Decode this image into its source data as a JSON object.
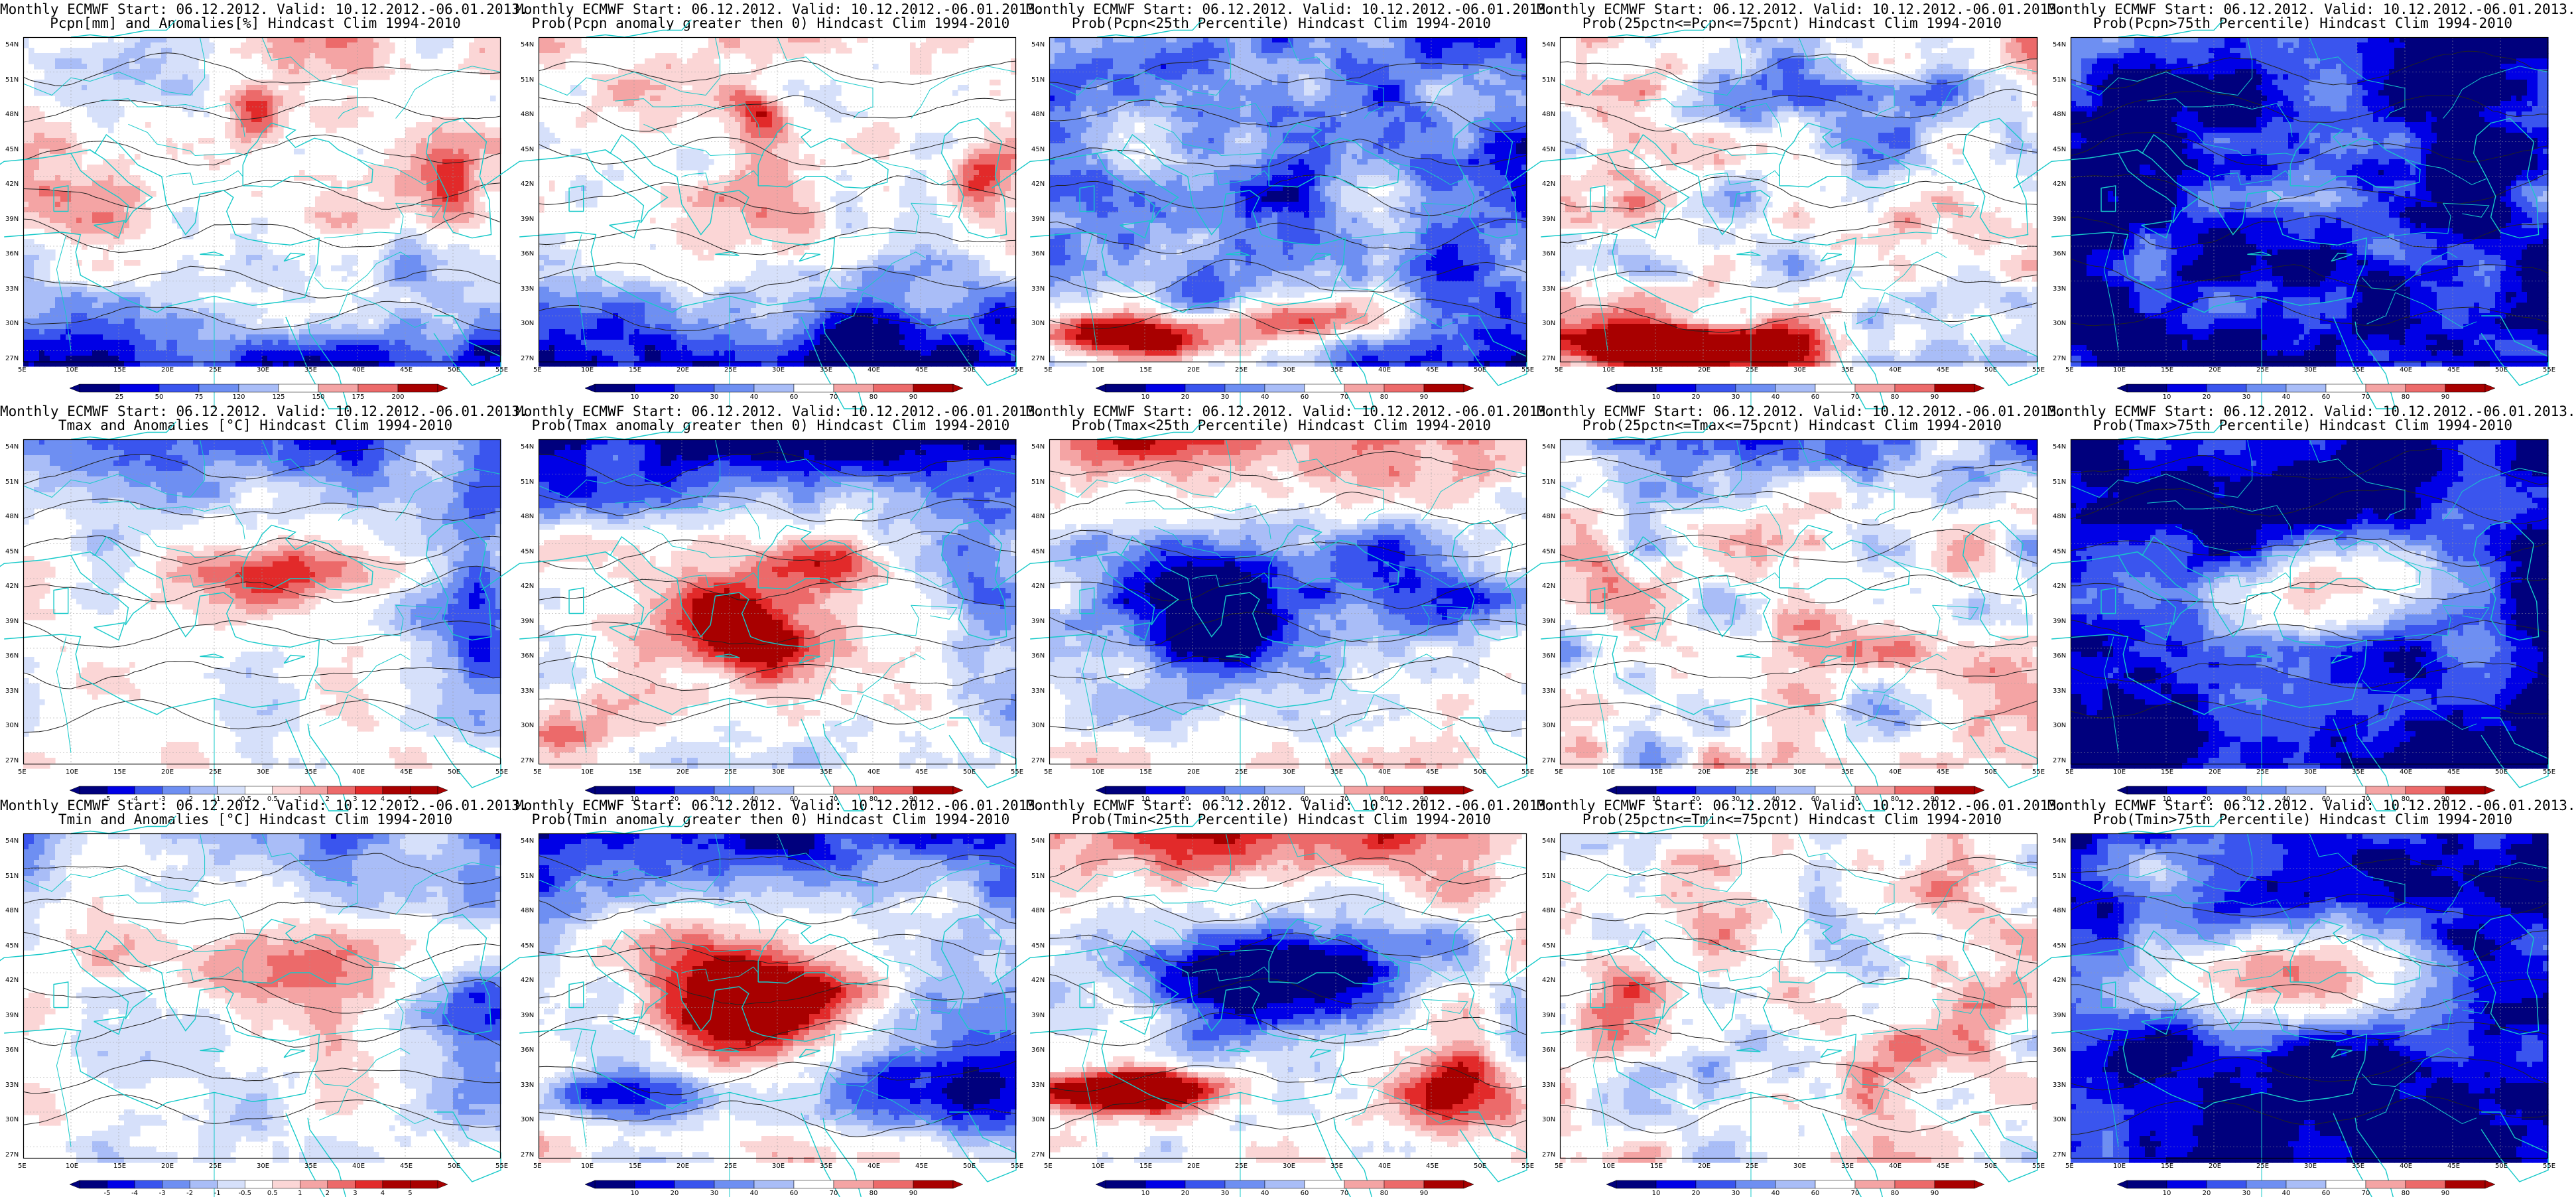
{
  "colors": {
    "land_outline": "#17c9c9",
    "contour": "#222222",
    "scale_blue_to_red": [
      "#00007d",
      "#0000e6",
      "#3a55ee",
      "#6e8ff2",
      "#a9bdf7",
      "#d6e0fa",
      "#ffffff",
      "#fbd6d6",
      "#f4a4a4",
      "#ec6a6a",
      "#e22a2a",
      "#a80000"
    ],
    "scale_blue_to_white": [
      "#00007d",
      "#0000e6",
      "#3a55ee",
      "#6e8ff2",
      "#a9bdf7",
      "#d6e0fa",
      "#ffffff",
      "#ffffff",
      "#ffffff",
      "#ffffff"
    ]
  },
  "axes": {
    "lat_labels": [
      "54N",
      "51N",
      "48N",
      "45N",
      "42N",
      "39N",
      "36N",
      "33N",
      "30N",
      "27N"
    ],
    "lon_labels": [
      "5E",
      "10E",
      "15E",
      "20E",
      "25E",
      "30E",
      "35E",
      "40E",
      "45E",
      "50E",
      "55E"
    ]
  },
  "colorbars": {
    "pcpn_anom": [
      "25",
      "50",
      "75",
      "120",
      "125",
      "150",
      "175",
      "200"
    ],
    "temp_anom": [
      "-5",
      "-4",
      "-3",
      "-2",
      "-1",
      "-0.5",
      "0.5",
      "1",
      "2",
      "3",
      "4",
      "5"
    ],
    "prob": [
      "10",
      "20",
      "30",
      "40",
      "60",
      "70",
      "80",
      "90"
    ]
  },
  "rows": [
    {
      "panels": [
        {
          "title1": "Monthly ECMWF Start: 06.12.2012. Valid: 10.12.2012.-06.01.2013.",
          "title2": "Pcpn[mm] and Anomalies[%] Hindcast Clim 1994-2010",
          "colorbar": "pcpn_anom"
        },
        {
          "title1": "Monthly ECMWF Start: 06.12.2012. Valid: 10.12.2012.-06.01.2013.",
          "title2": "Prob(Pcpn anomaly greater then 0) Hindcast Clim 1994-2010",
          "colorbar": "prob"
        },
        {
          "title1": "Monthly ECMWF Start: 06.12.2012. Valid: 10.12.2012.-06.01.2013.",
          "title2": "Prob(Pcpn<25th Percentile) Hindcast Clim 1994-2010",
          "colorbar": "prob"
        },
        {
          "title1": "Monthly ECMWF Start: 06.12.2012. Valid: 10.12.2012.-06.01.2013.",
          "title2": "Prob(25pctn<=Pcpn<=75pcnt) Hindcast Clim 1994-2010",
          "colorbar": "prob"
        },
        {
          "title1": "Monthly ECMWF Start: 06.12.2012. Valid: 10.12.2012.-06.01.2013.",
          "title2": "Prob(Pcpn>75th Percentile) Hindcast Clim 1994-2010",
          "colorbar": "prob"
        }
      ]
    },
    {
      "panels": [
        {
          "title1": "Monthly ECMWF Start: 06.12.2012. Valid: 10.12.2012.-06.01.2013.",
          "title2": "Tmax and Anomalies [°C] Hindcast Clim 1994-2010",
          "colorbar": "temp_anom"
        },
        {
          "title1": "Monthly ECMWF Start: 06.12.2012. Valid: 10.12.2012.-06.01.2013.",
          "title2": "Prob(Tmax anomaly greater then 0) Hindcast Clim 1994-2010",
          "colorbar": "prob"
        },
        {
          "title1": "Monthly ECMWF Start: 06.12.2012. Valid: 10.12.2012.-06.01.2013.",
          "title2": "Prob(Tmax<25th Percentile) Hindcast Clim 1994-2010",
          "colorbar": "prob"
        },
        {
          "title1": "Monthly ECMWF Start: 06.12.2012. Valid: 10.12.2012.-06.01.2013.",
          "title2": "Prob(25pctn<=Tmax<=75pcnt) Hindcast Clim 1994-2010",
          "colorbar": "prob"
        },
        {
          "title1": "Monthly ECMWF Start: 06.12.2012. Valid: 10.12.2012.-06.01.2013.",
          "title2": "Prob(Tmax>75th Percentile) Hindcast Clim 1994-2010",
          "colorbar": "prob"
        }
      ]
    },
    {
      "panels": [
        {
          "title1": "Monthly ECMWF Start: 06.12.2012. Valid: 10.12.2012.-06.01.2013.",
          "title2": "Tmin and Anomalies [°C] Hindcast Clim 1994-2010",
          "colorbar": "temp_anom"
        },
        {
          "title1": "Monthly ECMWF Start: 06.12.2012. Valid: 10.12.2012.-06.01.2013.",
          "title2": "Prob(Tmin anomaly greater then 0) Hindcast Clim 1994-2010",
          "colorbar": "prob"
        },
        {
          "title1": "Monthly ECMWF Start: 06.12.2012. Valid: 10.12.2012.-06.01.2013.",
          "title2": "Prob(Tmin<25th Percentile) Hindcast Clim 1994-2010",
          "colorbar": "prob"
        },
        {
          "title1": "Monthly ECMWF Start: 06.12.2012. Valid: 10.12.2012.-06.01.2013.",
          "title2": "Prob(25pctn<=Tmin<=75pcnt) Hindcast Clim 1994-2010",
          "colorbar": "prob"
        },
        {
          "title1": "Monthly ECMWF Start: 06.12.2012. Valid: 10.12.2012.-06.01.2013.",
          "title2": "Prob(Tmin>75th Percentile) Hindcast Clim 1994-2010",
          "colorbar": "prob"
        }
      ]
    }
  ]
}
